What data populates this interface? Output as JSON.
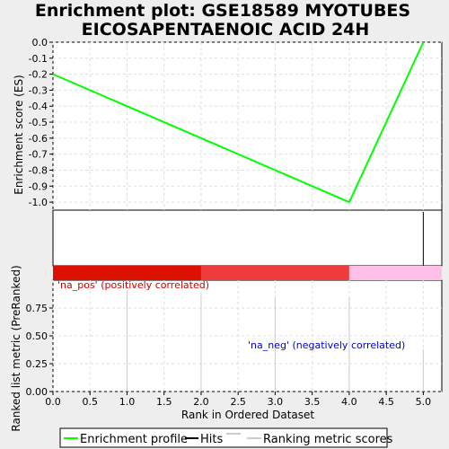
{
  "chart_data": {
    "type": "line",
    "title_line1": "Enrichment plot: GSE18589 MYOTUBES",
    "title_line2": "EICOSAPENTAENOIC ACID 24H",
    "xlabel": "Rank in Ordered Dataset",
    "ylabel_top": "Enrichment score (ES)",
    "ylabel_bottom": "Ranked list metric (PreRanked)",
    "xlim": [
      0,
      5.25
    ],
    "x_ticks": [
      "0.0",
      "0.5",
      "1.0",
      "1.5",
      "2.0",
      "2.5",
      "3.0",
      "3.5",
      "4.0",
      "4.5",
      "5.0"
    ],
    "es_ylim": [
      -1.05,
      0.0
    ],
    "es_ticks": [
      "0.0",
      "-0.1",
      "-0.2",
      "-0.3",
      "-0.4",
      "-0.5",
      "-0.6",
      "-0.7",
      "-0.8",
      "-0.9",
      "-1.0"
    ],
    "es_curve": {
      "name": "Enrichment profile",
      "color": "#00ff00",
      "x": [
        0,
        4,
        5
      ],
      "y": [
        -0.2,
        -1.0,
        0.0
      ]
    },
    "hits": [
      5
    ],
    "heatmap_bands": [
      {
        "from": 0,
        "to": 2,
        "color": "#dd1100"
      },
      {
        "from": 2,
        "to": 4,
        "color": "#ee3b3b"
      },
      {
        "from": 4,
        "to": 5.25,
        "color": "#ffc0e8"
      }
    ],
    "metric_ylim": [
      0,
      1.0
    ],
    "metric_ticks": [
      "0.00",
      "0.25",
      "0.50",
      "0.75"
    ],
    "metric_values": {
      "x": [
        1,
        2,
        3,
        4,
        5
      ],
      "y": [
        0.9,
        0.88,
        0.85,
        0.85,
        0.38
      ]
    },
    "pos_label": "'na_pos' (positively correlated)",
    "neg_label": "'na_neg' (negatively correlated)",
    "pos_color": "#cc0000",
    "neg_color": "#0000cc",
    "legend": {
      "enrichment_profile": "Enrichment profile",
      "hits": "Hits",
      "ranking": "Ranking metric scores"
    }
  }
}
